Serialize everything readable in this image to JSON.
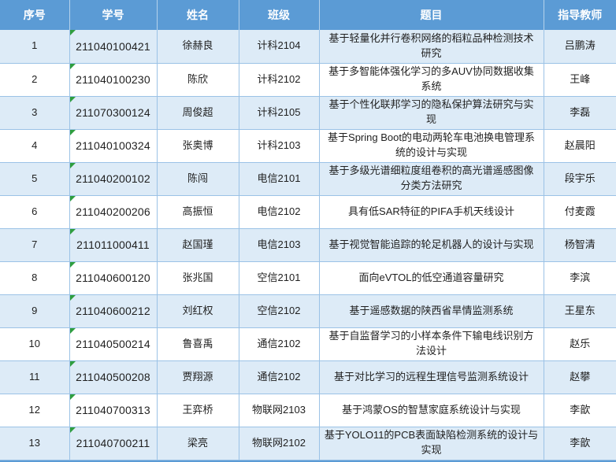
{
  "table": {
    "columns": [
      {
        "key": "no",
        "label": "序号"
      },
      {
        "key": "student_id",
        "label": "学号"
      },
      {
        "key": "name",
        "label": "姓名"
      },
      {
        "key": "class",
        "label": "班级"
      },
      {
        "key": "title",
        "label": "题目"
      },
      {
        "key": "advisor",
        "label": "指导教师"
      }
    ],
    "rows": [
      {
        "no": "1",
        "student_id": "211040100421",
        "name": "徐赫良",
        "class": "计科2104",
        "title": "基于轻量化并行卷积网络的稻粒品种检测技术研究",
        "advisor": "吕鹏涛"
      },
      {
        "no": "2",
        "student_id": "211040100230",
        "name": "陈欣",
        "class": "计科2102",
        "title": "基于多智能体强化学习的多AUV协同数据收集系统",
        "advisor": "王峰"
      },
      {
        "no": "3",
        "student_id": "211070300124",
        "name": "周俊超",
        "class": "计科2105",
        "title": "基于个性化联邦学习的隐私保护算法研究与实现",
        "advisor": "李磊"
      },
      {
        "no": "4",
        "student_id": "211040100324",
        "name": "张奥博",
        "class": "计科2103",
        "title": "基于Spring Boot的电动两轮车电池换电管理系统的设计与实现",
        "advisor": "赵晨阳"
      },
      {
        "no": "5",
        "student_id": "211040200102",
        "name": "陈闯",
        "class": "电信2101",
        "title": "基于多级光谱细粒度组卷积的高光谱遥感图像分类方法研究",
        "advisor": "段宇乐"
      },
      {
        "no": "6",
        "student_id": "211040200206",
        "name": "高振恒",
        "class": "电信2102",
        "title": "具有低SAR特征的PIFA手机天线设计",
        "advisor": "付麦霞"
      },
      {
        "no": "7",
        "student_id": "211011000411",
        "name": "赵国瑾",
        "class": "电信2103",
        "title": "基于视觉智能追踪的轮足机器人的设计与实现",
        "advisor": "杨智清"
      },
      {
        "no": "8",
        "student_id": "211040600120",
        "name": "张兆国",
        "class": "空信2101",
        "title": "面向eVTOL的低空通道容量研究",
        "advisor": "李滨"
      },
      {
        "no": "9",
        "student_id": "211040600212",
        "name": "刘红权",
        "class": "空信2102",
        "title": "基于遥感数据的陕西省旱情监测系统",
        "advisor": "王星东"
      },
      {
        "no": "10",
        "student_id": "211040500214",
        "name": "鲁喜禹",
        "class": "通信2102",
        "title": "基于自监督学习的小样本条件下输电线识别方法设计",
        "advisor": "赵乐"
      },
      {
        "no": "11",
        "student_id": "211040500208",
        "name": "贾翔源",
        "class": "通信2102",
        "title": "基于对比学习的远程生理信号监测系统设计",
        "advisor": "赵攀"
      },
      {
        "no": "12",
        "student_id": "211040700313",
        "name": "王弈桥",
        "class": "物联网2103",
        "title": "基于鸿蒙OS的智慧家庭系统设计与实现",
        "advisor": "李歆"
      },
      {
        "no": "13",
        "student_id": "211040700211",
        "name": "梁亮",
        "class": "物联网2102",
        "title": "基于YOLO11的PCB表面缺陷检测系统的设计与实现",
        "advisor": "李歆"
      }
    ]
  },
  "colors": {
    "header_bg": "#5b9bd5",
    "band_bg": "#ddebf7",
    "grid_line": "#9bc2e6",
    "triangle": "#2f9e3f",
    "bottom_strip": "#5b9bd5"
  },
  "icons": {
    "corner_triangle": "number-stored-as-text-indicator"
  }
}
